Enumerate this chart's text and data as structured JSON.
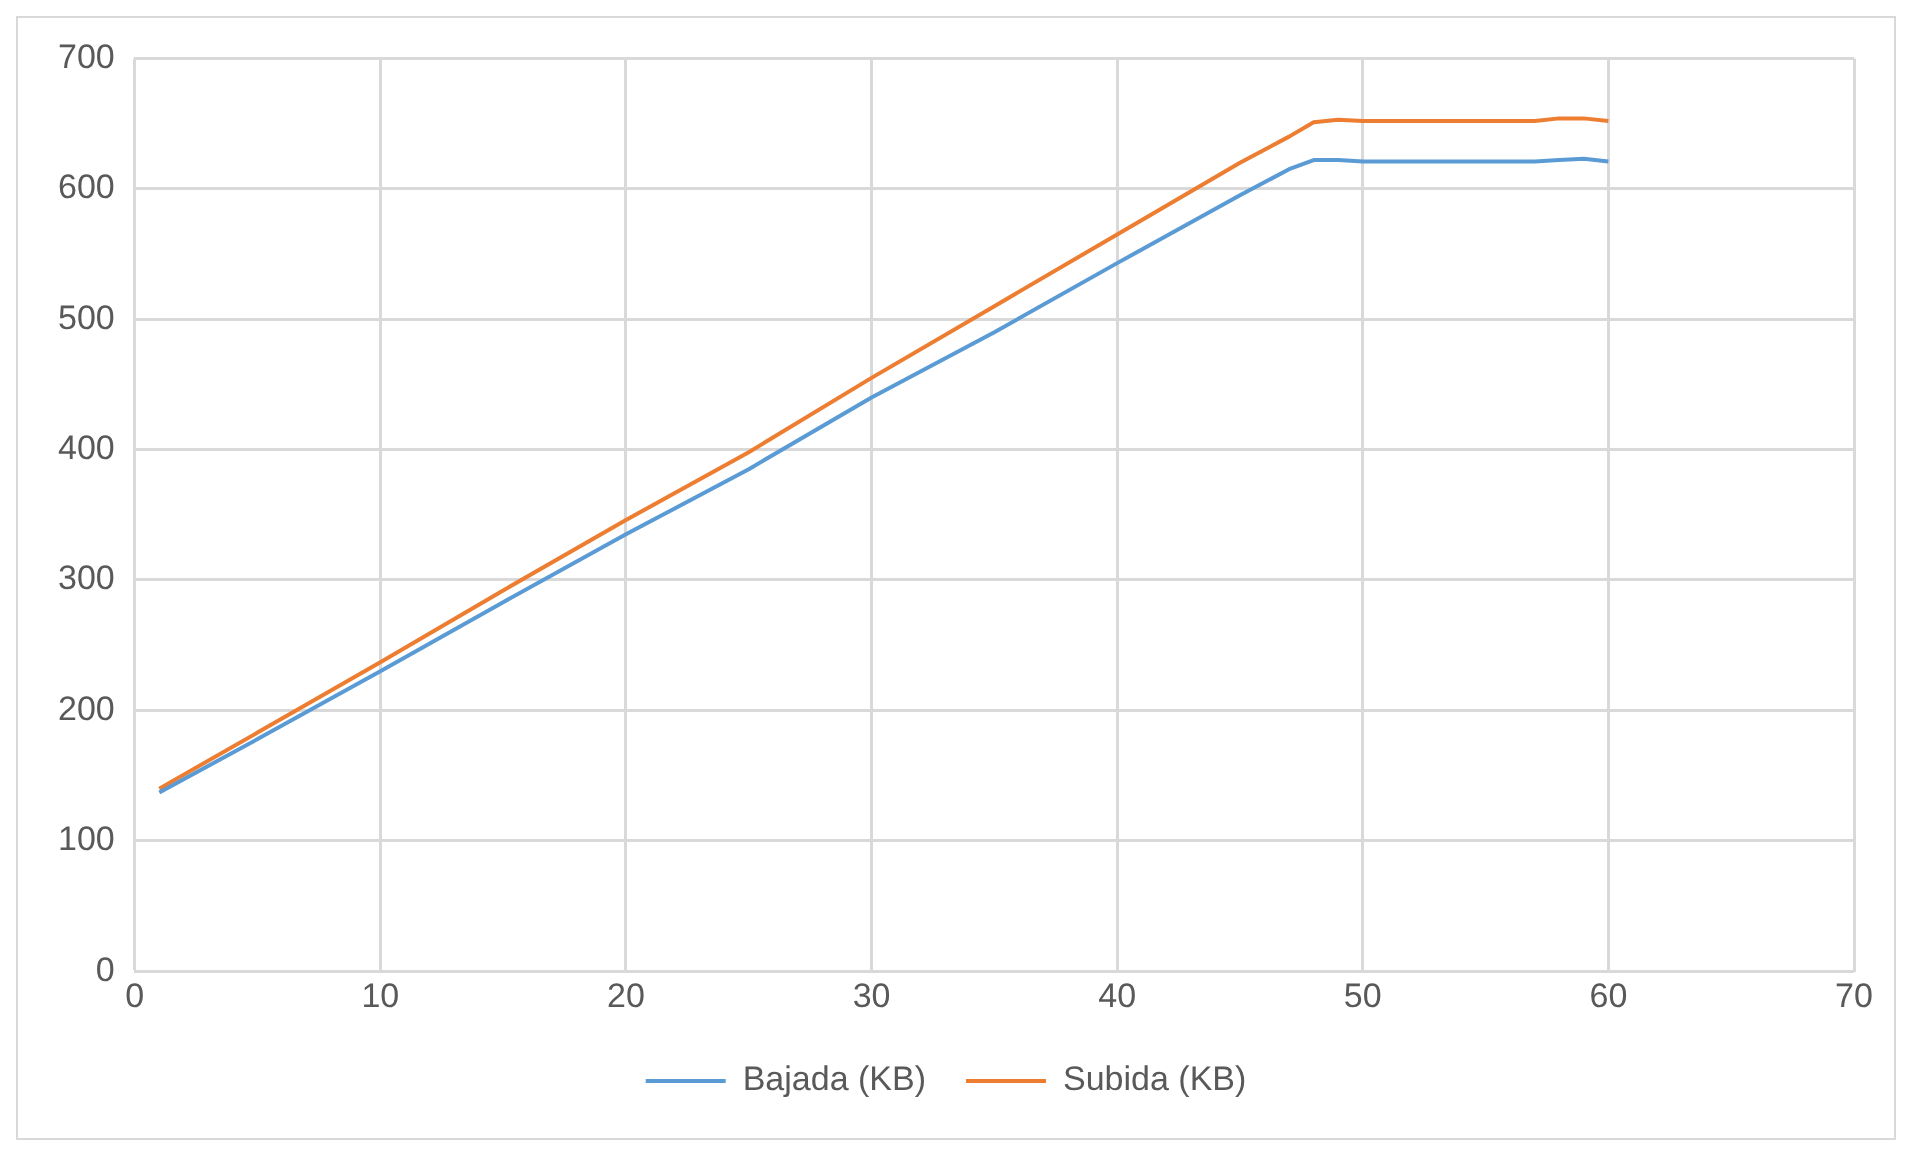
{
  "chart_data": {
    "type": "line",
    "x": [
      1,
      5,
      10,
      15,
      20,
      25,
      30,
      35,
      40,
      45,
      47,
      48,
      49,
      50,
      55,
      57,
      58,
      59,
      60
    ],
    "series": [
      {
        "name": "Bajada (KB)",
        "color": "#5b9bd5",
        "values": [
          137,
          178,
          230,
          283,
          335,
          385,
          440,
          490,
          543,
          595,
          615,
          622,
          622,
          621,
          621,
          621,
          622,
          623,
          621
        ]
      },
      {
        "name": "Subida (KB)",
        "color": "#ed7d31",
        "values": [
          140,
          183,
          237,
          292,
          346,
          398,
          455,
          510,
          565,
          620,
          640,
          651,
          653,
          652,
          652,
          652,
          654,
          654,
          652
        ]
      }
    ],
    "xlim": [
      0,
      70
    ],
    "xticks": [
      0,
      10,
      20,
      30,
      40,
      50,
      60,
      70
    ],
    "ylim": [
      0,
      700
    ],
    "yticks": [
      0,
      100,
      200,
      300,
      400,
      500,
      600,
      700
    ],
    "grid": true,
    "legend": "bottom",
    "marker": "none",
    "line_style": "solid"
  }
}
